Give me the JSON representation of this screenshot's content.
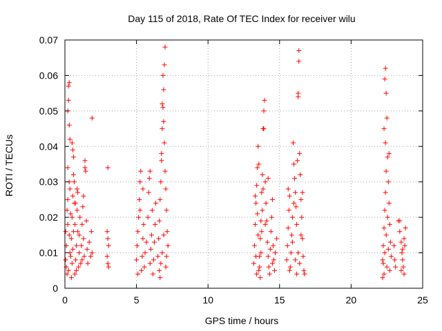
{
  "chart_data": {
    "type": "scatter",
    "title": "Day 115 of 2018, Rate Of TEC Index for receiver wilu",
    "xlabel": "GPS time / hours",
    "ylabel": "ROTI / TECUs",
    "xlim": [
      0,
      25
    ],
    "ylim": [
      0,
      0.07
    ],
    "xticks": [
      0,
      5,
      10,
      15,
      20,
      25
    ],
    "yticks": [
      0,
      0.01,
      0.02,
      0.03,
      0.04,
      0.05,
      0.06,
      0.07
    ],
    "grid": true,
    "marker": "plus",
    "color": "#ff0000",
    "series": [
      {
        "name": "ROTI",
        "points": [
          [
            0.05,
            0.008
          ],
          [
            0.1,
            0.012
          ],
          [
            0.15,
            0.022
          ],
          [
            0.2,
            0.018
          ],
          [
            0.25,
            0.005
          ],
          [
            0.3,
            0.015
          ],
          [
            0.35,
            0.01
          ],
          [
            0.1,
            0.006
          ],
          [
            0.2,
            0.025
          ],
          [
            0.3,
            0.03
          ],
          [
            0.35,
            0.042
          ],
          [
            0.3,
            0.046
          ],
          [
            0.25,
            0.057
          ],
          [
            0.2,
            0.05
          ],
          [
            0.25,
            0.053
          ],
          [
            0.3,
            0.058
          ],
          [
            0.2,
            0.034
          ],
          [
            0.35,
            0.028
          ],
          [
            0.15,
            0.004
          ],
          [
            0.4,
            0.009
          ],
          [
            0.45,
            0.014
          ],
          [
            0.5,
            0.02
          ],
          [
            0.55,
            0.026
          ],
          [
            0.6,
            0.032
          ],
          [
            0.5,
            0.041
          ],
          [
            0.55,
            0.039
          ],
          [
            0.6,
            0.037
          ],
          [
            0.45,
            0.003
          ],
          [
            0.5,
            0.007
          ],
          [
            0.55,
            0.011
          ],
          [
            0.6,
            0.016
          ],
          [
            0.65,
            0.024
          ],
          [
            0.7,
            0.018
          ],
          [
            0.75,
            0.008
          ],
          [
            0.8,
            0.012
          ],
          [
            0.85,
            0.022
          ],
          [
            0.9,
            0.027
          ],
          [
            0.95,
            0.006
          ],
          [
            1.0,
            0.01
          ],
          [
            1.0,
            0.015
          ],
          [
            1.05,
            0.02
          ],
          [
            1.1,
            0.007
          ],
          [
            1.15,
            0.012
          ],
          [
            1.2,
            0.018
          ],
          [
            1.25,
            0.023
          ],
          [
            1.3,
            0.014
          ],
          [
            1.35,
            0.009
          ],
          [
            1.4,
            0.036
          ],
          [
            1.4,
            0.034
          ],
          [
            1.45,
            0.033
          ],
          [
            1.5,
            0.019
          ],
          [
            1.55,
            0.011
          ],
          [
            1.6,
            0.007
          ],
          [
            1.7,
            0.013
          ],
          [
            1.8,
            0.009
          ],
          [
            1.85,
            0.016
          ],
          [
            1.9,
            0.048
          ],
          [
            1.9,
            0.01
          ],
          [
            0.7,
            0.004
          ],
          [
            0.8,
            0.005
          ],
          [
            0.9,
            0.016
          ],
          [
            0.65,
            0.03
          ],
          [
            0.75,
            0.024
          ],
          [
            0.4,
            0.021
          ],
          [
            0.05,
            0.016
          ],
          [
            1.2,
            0.008
          ],
          [
            1.3,
            0.026
          ],
          [
            0.85,
            0.028
          ],
          [
            3.0,
            0.034
          ],
          [
            2.95,
            0.016
          ],
          [
            3.0,
            0.014
          ],
          [
            3.05,
            0.012
          ],
          [
            2.95,
            0.009
          ],
          [
            3.0,
            0.007
          ],
          [
            3.05,
            0.006
          ],
          [
            5.0,
            0.008
          ],
          [
            5.05,
            0.012
          ],
          [
            5.1,
            0.016
          ],
          [
            5.15,
            0.02
          ],
          [
            5.2,
            0.025
          ],
          [
            5.25,
            0.03
          ],
          [
            5.3,
            0.033
          ],
          [
            5.35,
            0.005
          ],
          [
            5.4,
            0.009
          ],
          [
            5.45,
            0.014
          ],
          [
            5.5,
            0.018
          ],
          [
            5.55,
            0.006
          ],
          [
            5.6,
            0.01
          ],
          [
            5.7,
            0.013
          ],
          [
            5.8,
            0.02
          ],
          [
            5.85,
            0.027
          ],
          [
            5.9,
            0.031
          ],
          [
            5.95,
            0.007
          ],
          [
            6.0,
            0.011
          ],
          [
            6.05,
            0.015
          ],
          [
            6.1,
            0.022
          ],
          [
            6.15,
            0.004
          ],
          [
            6.2,
            0.008
          ],
          [
            6.25,
            0.013
          ],
          [
            6.3,
            0.018
          ],
          [
            6.35,
            0.024
          ],
          [
            5.1,
            0.004
          ],
          [
            5.25,
            0.022
          ],
          [
            5.45,
            0.028
          ],
          [
            5.95,
            0.033
          ],
          [
            6.5,
            0.009
          ],
          [
            6.55,
            0.014
          ],
          [
            6.6,
            0.019
          ],
          [
            6.65,
            0.025
          ],
          [
            6.7,
            0.03
          ],
          [
            6.75,
            0.036
          ],
          [
            6.8,
            0.045
          ],
          [
            6.85,
            0.051
          ],
          [
            6.9,
            0.056
          ],
          [
            6.95,
            0.063
          ],
          [
            7.0,
            0.068
          ],
          [
            6.85,
            0.06
          ],
          [
            6.95,
            0.041
          ],
          [
            6.75,
            0.038
          ],
          [
            6.8,
            0.052
          ],
          [
            6.9,
            0.047
          ],
          [
            7.0,
            0.033
          ],
          [
            7.05,
            0.028
          ],
          [
            7.1,
            0.022
          ],
          [
            7.15,
            0.016
          ],
          [
            7.2,
            0.012
          ],
          [
            6.6,
            0.005
          ],
          [
            6.7,
            0.007
          ],
          [
            6.8,
            0.01
          ],
          [
            7.05,
            0.006
          ],
          [
            7.1,
            0.009
          ],
          [
            6.65,
            0.003
          ],
          [
            6.9,
            0.015
          ],
          [
            13.2,
            0.007
          ],
          [
            13.25,
            0.012
          ],
          [
            13.3,
            0.018
          ],
          [
            13.35,
            0.024
          ],
          [
            13.4,
            0.029
          ],
          [
            13.45,
            0.034
          ],
          [
            13.5,
            0.04
          ],
          [
            13.55,
            0.005
          ],
          [
            13.6,
            0.009
          ],
          [
            13.65,
            0.014
          ],
          [
            13.7,
            0.019
          ],
          [
            13.75,
            0.027
          ],
          [
            13.8,
            0.032
          ],
          [
            13.85,
            0.045
          ],
          [
            13.9,
            0.05
          ],
          [
            13.95,
            0.053
          ],
          [
            13.9,
            0.045
          ],
          [
            13.8,
            0.022
          ],
          [
            13.75,
            0.016
          ],
          [
            13.7,
            0.01
          ],
          [
            13.65,
            0.003
          ],
          [
            13.6,
            0.006
          ],
          [
            13.5,
            0.015
          ],
          [
            13.45,
            0.021
          ],
          [
            13.4,
            0.004
          ],
          [
            13.35,
            0.009
          ],
          [
            13.3,
            0.026
          ],
          [
            14.0,
            0.03
          ],
          [
            14.05,
            0.024
          ],
          [
            14.1,
            0.019
          ],
          [
            14.15,
            0.013
          ],
          [
            14.2,
            0.009
          ],
          [
            14.25,
            0.006
          ],
          [
            14.3,
            0.004
          ],
          [
            14.35,
            0.011
          ],
          [
            14.4,
            0.016
          ],
          [
            14.45,
            0.02
          ],
          [
            14.5,
            0.025
          ],
          [
            14.55,
            0.012
          ],
          [
            14.6,
            0.008
          ],
          [
            14.65,
            0.005
          ],
          [
            14.7,
            0.01
          ],
          [
            14.8,
            0.014
          ],
          [
            13.55,
            0.035
          ],
          [
            13.85,
            0.028
          ],
          [
            14.0,
            0.018
          ],
          [
            14.2,
            0.031
          ],
          [
            14.5,
            0.007
          ],
          [
            15.5,
            0.008
          ],
          [
            15.55,
            0.012
          ],
          [
            15.6,
            0.017
          ],
          [
            15.65,
            0.022
          ],
          [
            15.7,
            0.026
          ],
          [
            15.75,
            0.006
          ],
          [
            15.8,
            0.01
          ],
          [
            15.85,
            0.015
          ],
          [
            15.9,
            0.02
          ],
          [
            15.95,
            0.041
          ],
          [
            16.0,
            0.035
          ],
          [
            16.05,
            0.031
          ],
          [
            16.1,
            0.027
          ],
          [
            16.15,
            0.023
          ],
          [
            16.2,
            0.018
          ],
          [
            16.25,
            0.036
          ],
          [
            16.3,
            0.055
          ],
          [
            16.35,
            0.067
          ],
          [
            16.35,
            0.064
          ],
          [
            16.3,
            0.054
          ],
          [
            16.4,
            0.038
          ],
          [
            16.45,
            0.032
          ],
          [
            16.5,
            0.025
          ],
          [
            16.55,
            0.02
          ],
          [
            16.6,
            0.014
          ],
          [
            16.65,
            0.009
          ],
          [
            16.7,
            0.005
          ],
          [
            16.75,
            0.004
          ],
          [
            16.5,
            0.015
          ],
          [
            16.4,
            0.007
          ],
          [
            16.3,
            0.01
          ],
          [
            16.2,
            0.004
          ],
          [
            16.1,
            0.008
          ],
          [
            15.9,
            0.013
          ],
          [
            15.6,
            0.028
          ],
          [
            15.7,
            0.005
          ],
          [
            16.6,
            0.027
          ],
          [
            16.0,
            0.024
          ],
          [
            22.2,
            0.008
          ],
          [
            22.25,
            0.012
          ],
          [
            22.3,
            0.017
          ],
          [
            22.35,
            0.022
          ],
          [
            22.4,
            0.027
          ],
          [
            22.45,
            0.033
          ],
          [
            22.35,
            0.059
          ],
          [
            22.4,
            0.062
          ],
          [
            22.45,
            0.055
          ],
          [
            22.3,
            0.045
          ],
          [
            22.4,
            0.041
          ],
          [
            22.5,
            0.048
          ],
          [
            22.55,
            0.037
          ],
          [
            22.6,
            0.03
          ],
          [
            22.65,
            0.024
          ],
          [
            22.7,
            0.018
          ],
          [
            22.75,
            0.013
          ],
          [
            22.8,
            0.009
          ],
          [
            22.5,
            0.006
          ],
          [
            22.3,
            0.004
          ],
          [
            22.2,
            0.003
          ],
          [
            22.6,
            0.011
          ],
          [
            22.7,
            0.005
          ],
          [
            22.55,
            0.02
          ],
          [
            22.65,
            0.038
          ],
          [
            22.45,
            0.015
          ],
          [
            22.35,
            0.01
          ],
          [
            22.25,
            0.007
          ],
          [
            23.0,
            0.012
          ],
          [
            23.05,
            0.008
          ],
          [
            23.1,
            0.006
          ],
          [
            23.3,
            0.019
          ],
          [
            23.4,
            0.016
          ],
          [
            23.5,
            0.013
          ],
          [
            23.55,
            0.01
          ],
          [
            23.6,
            0.008
          ],
          [
            23.65,
            0.006
          ],
          [
            23.7,
            0.004
          ],
          [
            23.75,
            0.012
          ],
          [
            23.8,
            0.017
          ],
          [
            23.4,
            0.019
          ],
          [
            23.5,
            0.005
          ],
          [
            23.6,
            0.011
          ],
          [
            23.7,
            0.014
          ]
        ]
      }
    ]
  }
}
